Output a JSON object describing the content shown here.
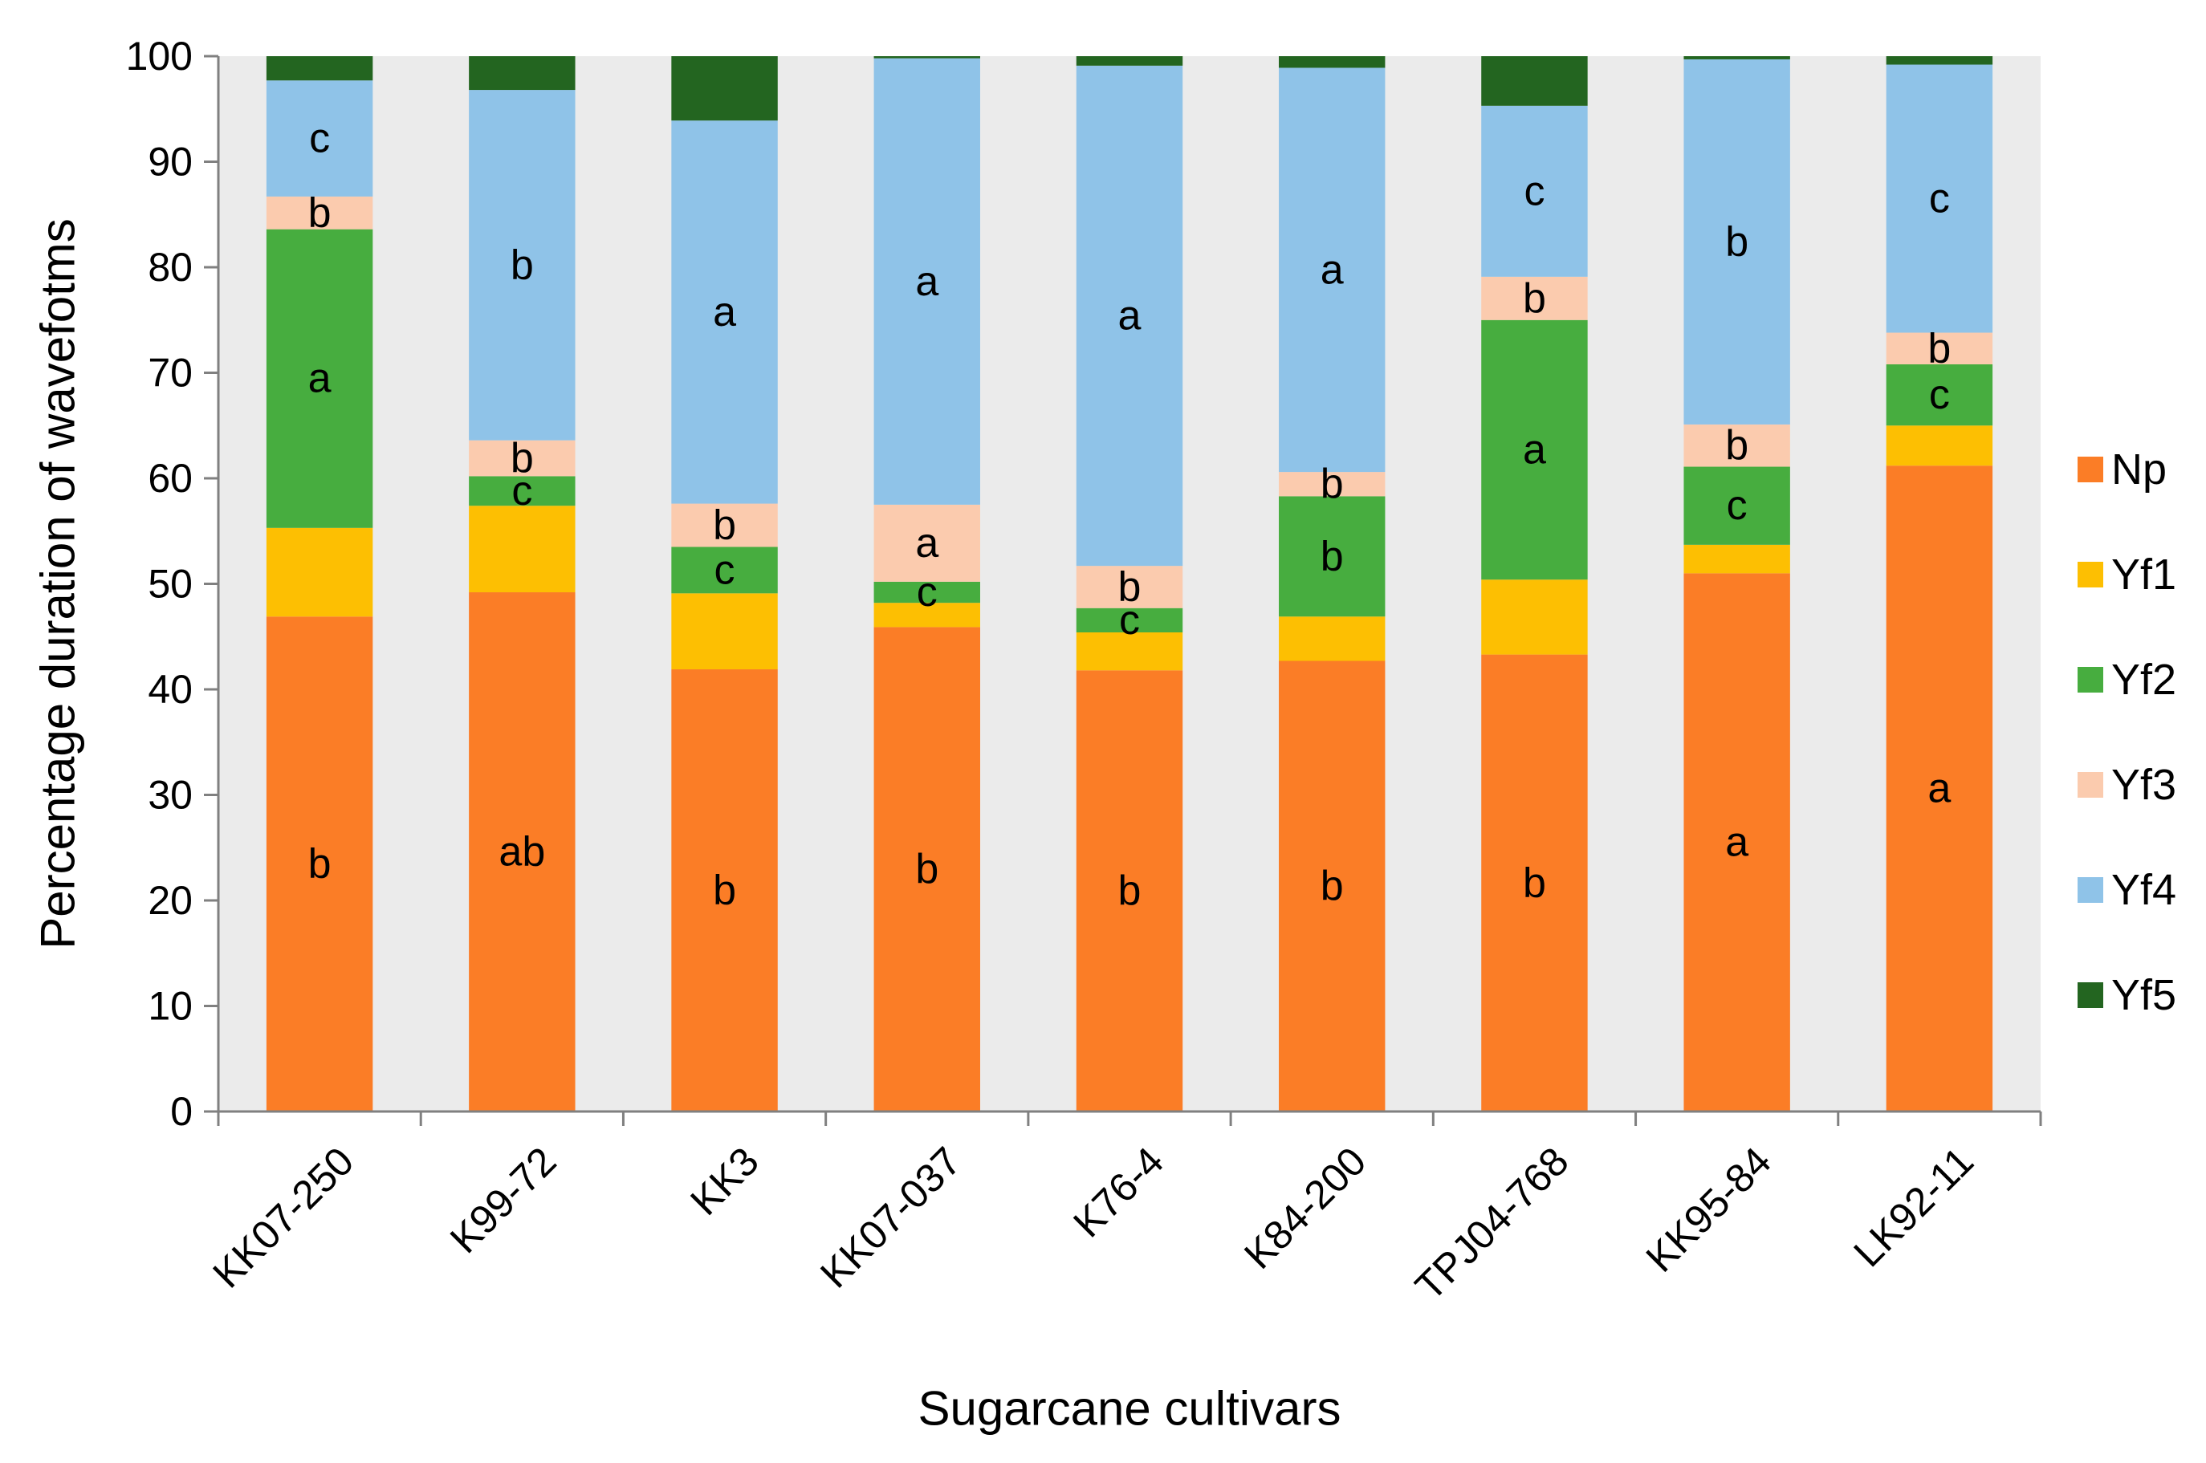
{
  "chart_data": {
    "type": "bar",
    "stacked": true,
    "title": "",
    "xlabel": "Sugarcane cultivars",
    "ylabel": "Percentage duration of wavefotms",
    "ylim": [
      0,
      100
    ],
    "yticks": [
      "0",
      "10",
      "20",
      "30",
      "40",
      "50",
      "60",
      "70",
      "80",
      "90",
      "100"
    ],
    "grid": false,
    "plot_background": "#ebebeb",
    "legend_position": "right",
    "categories": [
      "KK07-250",
      "K99-72",
      "KK3",
      "KK07-037",
      "K76-4",
      "K84-200",
      "TPJ04-768",
      "KK95-84",
      "LK92-11"
    ],
    "series": [
      {
        "name": "Np",
        "color": "#fb7d26",
        "values": [
          46.9,
          49.2,
          41.9,
          45.9,
          41.8,
          42.7,
          43.3,
          51.0,
          61.2
        ],
        "labels": [
          "b",
          "ab",
          "b",
          "b",
          "b",
          "b",
          "b",
          "a",
          "a"
        ]
      },
      {
        "name": "Yf1",
        "color": "#fdbf02",
        "values": [
          8.4,
          8.2,
          7.2,
          2.3,
          3.6,
          4.2,
          7.1,
          2.7,
          3.8
        ],
        "labels": [
          "",
          "",
          "",
          "",
          "",
          "",
          "",
          "",
          ""
        ]
      },
      {
        "name": "Yf2",
        "color": "#47ad3f",
        "values": [
          28.3,
          2.8,
          4.4,
          2.0,
          2.3,
          11.4,
          24.6,
          7.4,
          5.8
        ],
        "labels": [
          "a",
          "c",
          "c",
          "c",
          "c",
          "b",
          "a",
          "c",
          "c"
        ]
      },
      {
        "name": "Yf3",
        "color": "#fbcbae",
        "values": [
          3.1,
          3.4,
          4.1,
          7.3,
          4.0,
          2.3,
          4.1,
          4.0,
          3.0
        ],
        "labels": [
          "b",
          "b",
          "b",
          "a",
          "b",
          "b",
          "b",
          "b",
          "b"
        ]
      },
      {
        "name": "Yf4",
        "color": "#8fc3e8",
        "values": [
          11.0,
          33.2,
          36.3,
          42.3,
          47.4,
          38.3,
          16.2,
          34.6,
          25.4
        ],
        "labels": [
          "c",
          "b",
          "a",
          "a",
          "a",
          "a",
          "c",
          "b",
          "c"
        ]
      },
      {
        "name": "Yf5",
        "color": "#236520",
        "values": [
          2.3,
          3.2,
          6.1,
          0.2,
          0.9,
          1.1,
          4.7,
          0.3,
          0.8
        ],
        "labels": [
          "",
          "",
          "",
          "",
          "",
          "",
          "",
          "",
          ""
        ]
      }
    ]
  }
}
